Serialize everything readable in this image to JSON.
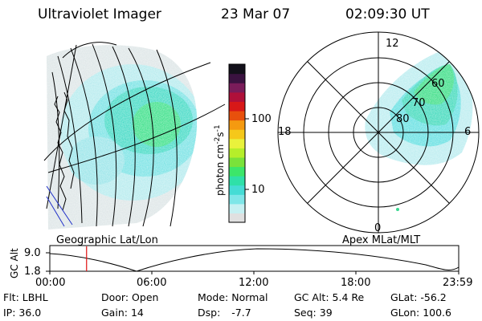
{
  "header": {
    "title": "Ultraviolet Imager",
    "date": "23 Mar 07",
    "time": "02:09:30 UT"
  },
  "colorbar": {
    "label": "photon cm",
    "label_sup1": "-2",
    "label_mid": "s",
    "label_sup2": "-1",
    "ticks": [
      "100",
      "10"
    ],
    "colors": [
      "#e0e0e0",
      "#c6f0f2",
      "#7fe6e8",
      "#45dcd5",
      "#2fe0a8",
      "#3ce66a",
      "#7ae23a",
      "#b6ee2a",
      "#e9f23c",
      "#f5c81a",
      "#f59a10",
      "#e8500c",
      "#d81818",
      "#b0103a",
      "#7a1c5a",
      "#3a1240",
      "#12101a"
    ]
  },
  "left_panel": {
    "label": "Geographic Lat/Lon"
  },
  "right_panel": {
    "label": "Apex MLat/MLT",
    "mlt_labels": [
      "12",
      "18",
      "6",
      "0"
    ],
    "lat_labels": [
      "60",
      "70",
      "80"
    ]
  },
  "timeline": {
    "ylabel": "GC Alt",
    "y_ticks": [
      "9.0",
      "1.8"
    ],
    "x_ticks": [
      "00:00",
      "06:00",
      "12:00",
      "18:00",
      "23:59"
    ],
    "current_time_fraction": 0.0899
  },
  "footer": {
    "row1": [
      {
        "key": "Flt:",
        "value": "LBHL"
      },
      {
        "key": "Door:",
        "value": "Open"
      },
      {
        "key": "Mode:",
        "value": "Normal"
      },
      {
        "key": "GC Alt:",
        "value": "5.4 Re"
      },
      {
        "key": "GLat:",
        "value": "-56.2"
      }
    ],
    "row2": [
      {
        "key": "IP:",
        "value": "36.0"
      },
      {
        "key": "Gain:",
        "value": "14"
      },
      {
        "key": "Dsp:",
        "value": "-7.7"
      },
      {
        "key": "Seq:",
        "value": "39"
      },
      {
        "key": "GLon:",
        "value": "100.6"
      }
    ]
  }
}
